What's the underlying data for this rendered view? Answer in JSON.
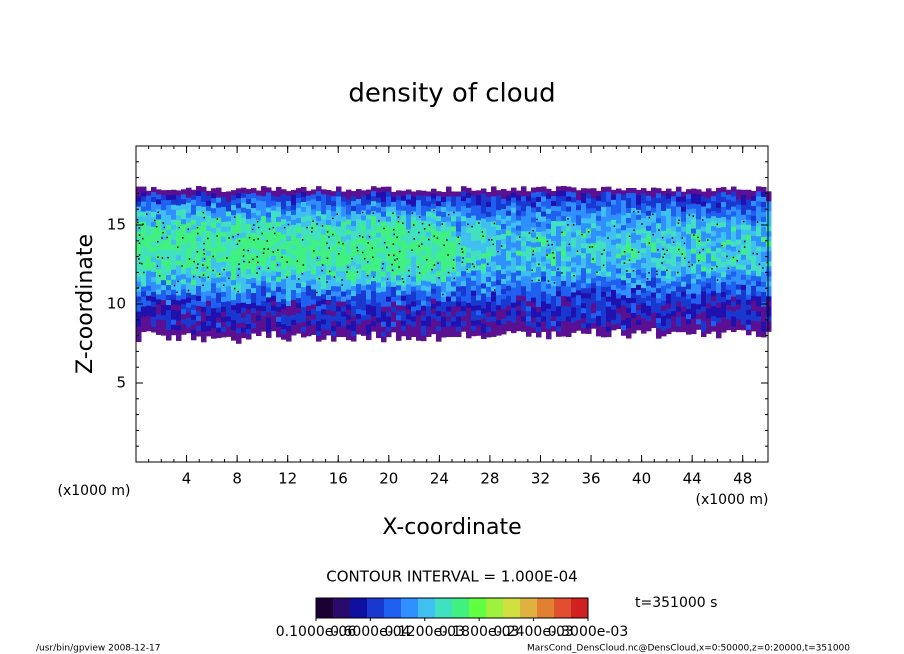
{
  "chart_data": {
    "type": "contour",
    "title": "density of cloud",
    "x_label": "X-coordinate",
    "y_label": "Z-coordinate",
    "x_unit": "(x1000 m)",
    "y_unit": "(x1000 m)",
    "xlim": [
      0,
      50
    ],
    "ylim": [
      0,
      20
    ],
    "xticks": [
      4,
      8,
      12,
      16,
      20,
      24,
      28,
      32,
      36,
      40,
      44,
      48
    ],
    "yticks": [
      5,
      10,
      15
    ],
    "contour_interval": "CONTOUR INTERVAL = 1.000E-04",
    "time_label": "t=351000 s",
    "colorbar": {
      "colors": [
        "#1a0033",
        "#2a0a6a",
        "#1010a0",
        "#1838d0",
        "#2060f0",
        "#3090ff",
        "#40c0f0",
        "#40e0c0",
        "#40f080",
        "#60ff40",
        "#a0f040",
        "#d0e040",
        "#e0b040",
        "#e08030",
        "#e05030",
        "#d02020"
      ],
      "ticks": [
        {
          "value": 1e-07,
          "label": "0.1000e-06"
        },
        {
          "value": 6e-05,
          "label": "0.6000e-04"
        },
        {
          "value": 0.00012,
          "label": "0.1200e-03"
        },
        {
          "value": 0.00018,
          "label": "0.1800e-03"
        },
        {
          "value": 0.00024,
          "label": "0.2400e-03"
        },
        {
          "value": 0.0003,
          "label": "0.3000e-03"
        }
      ]
    },
    "footer_left": "/usr/bin/gpview   2008-12-17",
    "footer_right": "MarsCond_DensCloud.nc@DensCloud,x=0:50000,z=0:20000,t=351000"
  }
}
